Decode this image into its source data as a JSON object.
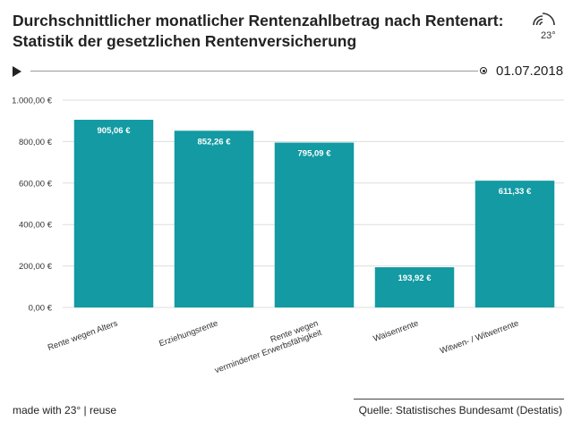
{
  "header": {
    "title": "Durchschnittlicher monatlicher Rentenzahlbetrag nach Rentenart: Statistik der gesetzlichen Rentenversicherung",
    "logo_text": "23°"
  },
  "timeline": {
    "date": "01.07.2018"
  },
  "footer": {
    "made_with": "made with 23°",
    "separator": "|",
    "reuse": "reuse",
    "source": "Quelle: Statistisches Bundesamt (Destatis)"
  },
  "colors": {
    "bar": "#139aa2",
    "grid": "#dddddd"
  },
  "chart_data": {
    "type": "bar",
    "categories": [
      "Rente wegen Alters",
      "Erziehungsrente",
      "Rente wegen verminderter Erwerbsfähigkeit",
      "Waisenrente",
      "Witwen- / Witwerrente"
    ],
    "category_lines": [
      [
        "Rente wegen Alters"
      ],
      [
        "Erziehungsrente"
      ],
      [
        "Rente wegen",
        "verminderter Erwerbsfähigkeit"
      ],
      [
        "Waisenrente"
      ],
      [
        "Witwen- / Witwerrente"
      ]
    ],
    "values": [
      905.06,
      852.26,
      795.09,
      193.92,
      611.33
    ],
    "value_labels": [
      "905,06 €",
      "852,26 €",
      "795,09 €",
      "193,92 €",
      "611,33 €"
    ],
    "yticks": [
      0,
      200,
      400,
      600,
      800,
      1000
    ],
    "ytick_labels": [
      "0,00 €",
      "200,00 €",
      "400,00 €",
      "600,00 €",
      "800,00 €",
      "1.000,00 €"
    ],
    "ylim": [
      0,
      1000
    ],
    "grid": true
  }
}
